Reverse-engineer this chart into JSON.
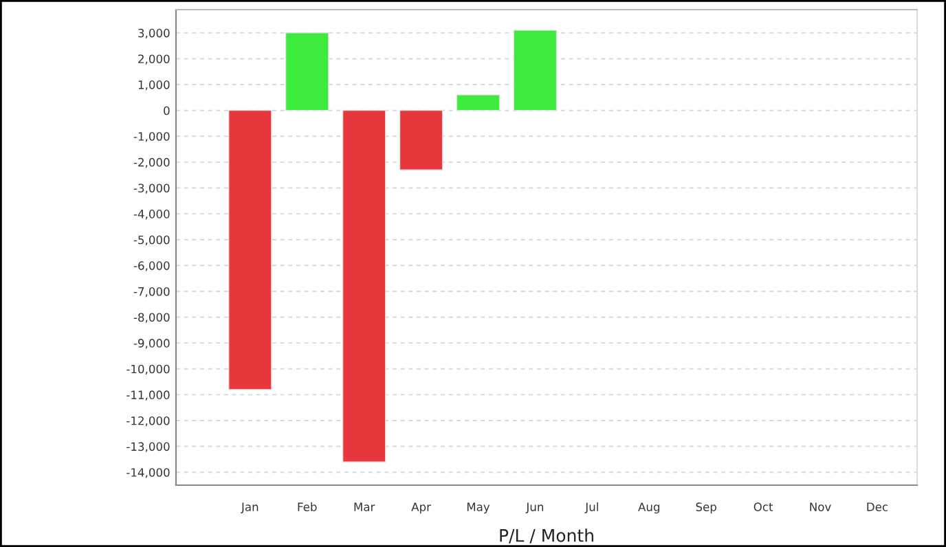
{
  "chart_data": {
    "type": "bar",
    "xlabel": "P/L / Month",
    "categories": [
      "Jan",
      "Feb",
      "Mar",
      "Apr",
      "May",
      "Jun",
      "Jul",
      "Aug",
      "Sep",
      "Oct",
      "Nov",
      "Dec"
    ],
    "values": [
      -10800,
      3000,
      -13600,
      -2300,
      600,
      3100,
      null,
      null,
      null,
      null,
      null,
      null
    ],
    "colors": [
      "#e8383d",
      "#3deb3d",
      "#e8383d",
      "#e8383d",
      "#3deb3d",
      "#3deb3d",
      null,
      null,
      null,
      null,
      null,
      null
    ],
    "ylim": [
      -14500,
      3900
    ],
    "yticks": [
      {
        "value": -14000,
        "label": "-14,000"
      },
      {
        "value": -13000,
        "label": "-13,000"
      },
      {
        "value": -12000,
        "label": "-12,000"
      },
      {
        "value": -11000,
        "label": "-11,000"
      },
      {
        "value": -10000,
        "label": "-10,000"
      },
      {
        "value": -9000,
        "label": "-9,000"
      },
      {
        "value": -8000,
        "label": "-8,000"
      },
      {
        "value": -7000,
        "label": "-7,000"
      },
      {
        "value": -6000,
        "label": "-6,000"
      },
      {
        "value": -5000,
        "label": "-5,000"
      },
      {
        "value": -4000,
        "label": "-4,000"
      },
      {
        "value": -3000,
        "label": "-3,000"
      },
      {
        "value": -2000,
        "label": "-2,000"
      },
      {
        "value": -1000,
        "label": "-1,000"
      },
      0,
      {
        "value": 1000,
        "label": "1,000"
      },
      {
        "value": 2000,
        "label": "2,000"
      },
      {
        "value": 3000,
        "label": "3,000"
      }
    ],
    "grid": "y",
    "legend": false
  }
}
